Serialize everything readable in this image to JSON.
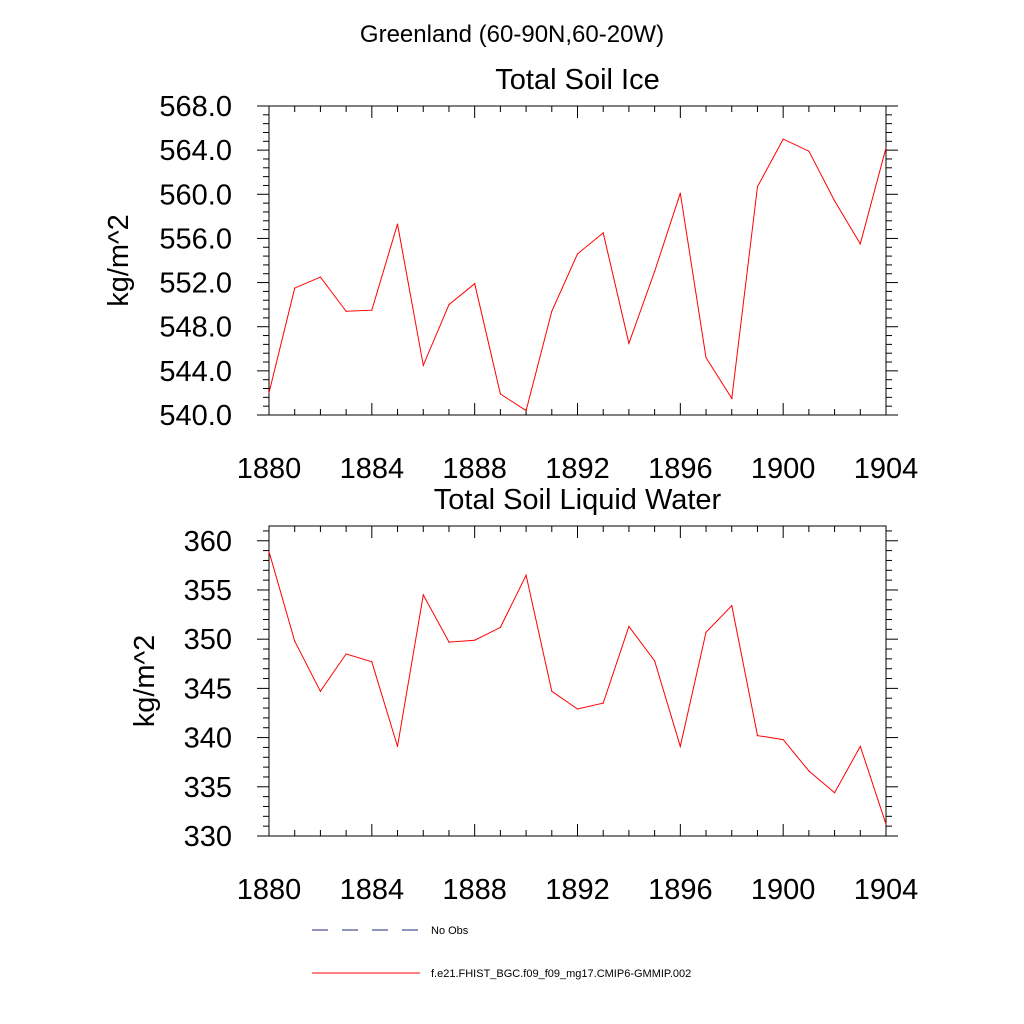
{
  "page_title": "Greenland (60-90N,60-20W)",
  "chart_data": [
    {
      "type": "line",
      "title": "Total Soil Ice",
      "xlabel": "",
      "ylabel": "kg/m^2",
      "xlim": [
        1880,
        1904
      ],
      "ylim": [
        540,
        568
      ],
      "x_ticks": [
        1880,
        1884,
        1888,
        1892,
        1896,
        1900,
        1904
      ],
      "x_tick_labels": [
        "1880",
        "1884",
        "1888",
        "1892",
        "1896",
        "1900",
        "1904"
      ],
      "y_ticks": [
        540,
        544,
        548,
        552,
        556,
        560,
        564,
        568
      ],
      "y_tick_labels": [
        "540.0",
        "544.0",
        "548.0",
        "552.0",
        "556.0",
        "560.0",
        "564.0",
        "568.0"
      ],
      "grid": false,
      "series": [
        {
          "name": "f.e21.FHIST_BGC.f09_f09_mg17.CMIP6-GMMIP.002",
          "color": "#ff0000",
          "x": [
            1880,
            1881,
            1882,
            1883,
            1884,
            1885,
            1886,
            1887,
            1888,
            1889,
            1890,
            1891,
            1892,
            1893,
            1894,
            1895,
            1896,
            1897,
            1898,
            1899,
            1900,
            1901,
            1902,
            1903,
            1904
          ],
          "y": [
            542.0,
            551.5,
            552.5,
            549.4,
            549.5,
            557.3,
            544.5,
            550.0,
            551.9,
            541.9,
            540.4,
            549.4,
            554.6,
            556.5,
            546.5,
            553.0,
            560.1,
            545.2,
            541.5,
            560.7,
            565.0,
            563.9,
            559.4,
            555.5,
            564.2
          ]
        }
      ]
    },
    {
      "type": "line",
      "title": "Total Soil Liquid Water",
      "xlabel": "",
      "ylabel": "kg/m^2",
      "xlim": [
        1880,
        1904
      ],
      "ylim": [
        330,
        361.5
      ],
      "x_ticks": [
        1880,
        1884,
        1888,
        1892,
        1896,
        1900,
        1904
      ],
      "x_tick_labels": [
        "1880",
        "1884",
        "1888",
        "1892",
        "1896",
        "1900",
        "1904"
      ],
      "y_ticks": [
        330,
        335,
        340,
        345,
        350,
        355,
        360
      ],
      "y_tick_labels": [
        "330",
        "335",
        "340",
        "345",
        "350",
        "355",
        "360"
      ],
      "grid": false,
      "series": [
        {
          "name": "f.e21.FHIST_BGC.f09_f09_mg17.CMIP6-GMMIP.002",
          "color": "#ff0000",
          "x": [
            1880,
            1881,
            1882,
            1883,
            1884,
            1885,
            1886,
            1887,
            1888,
            1889,
            1890,
            1891,
            1892,
            1893,
            1894,
            1895,
            1896,
            1897,
            1898,
            1899,
            1900,
            1901,
            1902,
            1903,
            1904
          ],
          "y": [
            358.9,
            349.8,
            344.7,
            348.5,
            347.7,
            339.1,
            354.5,
            349.7,
            349.9,
            351.2,
            356.5,
            344.7,
            342.9,
            343.5,
            351.3,
            347.8,
            339.1,
            350.7,
            353.4,
            340.2,
            339.8,
            336.6,
            334.4,
            339.1,
            331.2
          ]
        }
      ]
    }
  ],
  "legend": {
    "placement": "bottom",
    "items": [
      {
        "label": "No Obs",
        "color": "#1f2a7a",
        "style": "dashed"
      },
      {
        "label": "f.e21.FHIST_BGC.f09_f09_mg17.CMIP6-GMMIP.002",
        "color": "#ff0000",
        "style": "solid"
      }
    ]
  }
}
